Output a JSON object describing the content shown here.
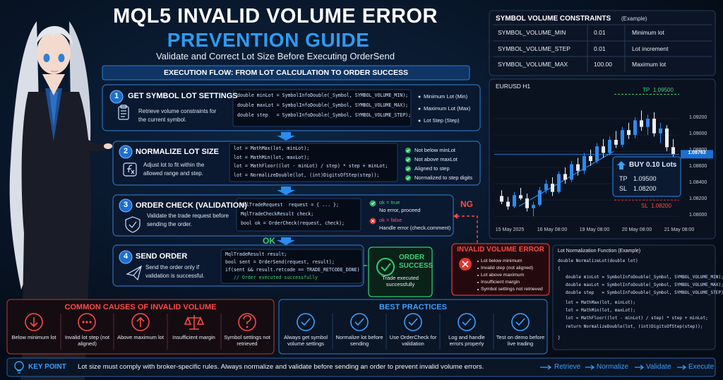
{
  "header": {
    "title": "MQL5 INVALID VOLUME ERROR",
    "subtitle": "PREVENTION GUIDE",
    "tagline": "Validate and Correct Lot Size Before Executing OrderSend"
  },
  "flow": {
    "title": "EXECUTION FLOW: FROM LOT CALCULATION TO ORDER SUCCESS",
    "ok": "OK",
    "ng": "NG"
  },
  "steps": [
    {
      "number": 1,
      "title": "GET SYMBOL LOT SETTINGS",
      "description": "Retrieve volume constraints for the current symbol.",
      "code": [
        "double minLot = SymbolInfoDouble(_Symbol, SYMBOL_VOLUME_MIN);",
        "double maxLot = SymbolInfoDouble(_Symbol, SYMBOL_VOLUME_MAX);",
        "double step   = SymbolInfoDouble(_Symbol, SYMBOL_VOLUME_STEP);"
      ],
      "notes": [
        "Minimum Lot (Min)",
        "Maximum Lot (Max)",
        "Lot Step (Step)"
      ]
    },
    {
      "number": 2,
      "title": "NORMALIZE LOT SIZE",
      "description": "Adjust lot to fit within the allowed range and step.",
      "code": [
        "lot = MathMax(lot, minLot);",
        "lot = MathMin(lot, maxLot);",
        "lot = MathFloor((lot - minLot) / step) * step + minLot;",
        "lot = NormalizeDouble(lot, (int)DigitsOfStep(step));"
      ],
      "notes": [
        "Not below minLot",
        "Not above maxLot",
        "Aligned to step",
        "Normalized to step digits"
      ]
    },
    {
      "number": 3,
      "title": "ORDER CHECK (VALIDATION)",
      "description": "Validate the trade request before sending the order.",
      "code": [
        "MqlTradeRequest  request = { ... };",
        "MqlTradeCheckResult check;",
        "bool ok = OrderCheck(request, check);"
      ],
      "results": [
        {
          "label": "ok = true",
          "detail": "No error, proceed"
        },
        {
          "label": "ok = false",
          "detail": "Handle error (check.comment)"
        }
      ]
    },
    {
      "number": 4,
      "title": "SEND ORDER",
      "description": "Send the order only if validation is successful.",
      "code": [
        "MqlTradeResult result;",
        "bool sent = OrderSend(request, result);",
        "if(sent && result.retcode == TRADE_RETCODE_DONE)",
        "   // Order executed successfully"
      ]
    }
  ],
  "success": {
    "title": "ORDER SUCCESS",
    "detail": "Trade executed successfully"
  },
  "error": {
    "title": "INVALID VOLUME ERROR",
    "items": [
      "Lot below minimum",
      "Invalid step (not aligned)",
      "Lot above maximum",
      "Insufficient margin",
      "Symbol settings not retrieved"
    ]
  },
  "constraints": {
    "title": "SYMBOL VOLUME CONSTRAINTS",
    "note": "(Example)",
    "rows": [
      [
        "SYMBOL_VOLUME_MIN",
        "0.01",
        "Minimum lot"
      ],
      [
        "SYMBOL_VOLUME_STEP",
        "0.01",
        "Lot increment"
      ],
      [
        "SYMBOL_VOLUME_MAX",
        "100.00",
        "Maximum lot"
      ]
    ]
  },
  "price_chart": {
    "title": "EURUSD H1",
    "ylim": [
      1.0795,
      1.096
    ],
    "yticks": [
      {
        "value": 1.092,
        "label": "1.09200"
      },
      {
        "value": 1.09,
        "label": "1.09000"
      },
      {
        "value": 1.088,
        "label": "1.08800"
      },
      {
        "value": 1.086,
        "label": "1.08600"
      },
      {
        "value": 1.084,
        "label": "1.08400"
      },
      {
        "value": 1.082,
        "label": "1.08200"
      },
      {
        "value": 1.08,
        "label": "1.08000"
      }
    ],
    "x_labels": [
      "15 May 2025",
      "16 May 08:00",
      "19 May 08:00",
      "20 May 08:00",
      "21 May 08:00"
    ],
    "candles": [
      [
        1.0825,
        1.0832,
        1.0815,
        1.0818
      ],
      [
        1.0818,
        1.0824,
        1.0808,
        1.0812
      ],
      [
        1.0812,
        1.083,
        1.081,
        1.0826
      ],
      [
        1.0826,
        1.0835,
        1.082,
        1.0822
      ],
      [
        1.0822,
        1.0828,
        1.0806,
        1.081
      ],
      [
        1.081,
        1.0818,
        1.08,
        1.0814
      ],
      [
        1.0814,
        1.0836,
        1.0812,
        1.0832
      ],
      [
        1.0832,
        1.0845,
        1.0828,
        1.084
      ],
      [
        1.084,
        1.0848,
        1.0825,
        1.083
      ],
      [
        1.083,
        1.0855,
        1.0828,
        1.0852
      ],
      [
        1.0852,
        1.086,
        1.084,
        1.0845
      ],
      [
        1.0845,
        1.0868,
        1.0842,
        1.0864
      ],
      [
        1.0864,
        1.0872,
        1.085,
        1.0856
      ],
      [
        1.0856,
        1.0878,
        1.0852,
        1.0874
      ],
      [
        1.0874,
        1.0882,
        1.0862,
        1.0868
      ],
      [
        1.0868,
        1.089,
        1.0865,
        1.0886
      ],
      [
        1.0886,
        1.0895,
        1.0872,
        1.0878
      ],
      [
        1.0878,
        1.0898,
        1.0875,
        1.0894
      ],
      [
        1.0894,
        1.0905,
        1.0884,
        1.0888
      ],
      [
        1.0888,
        1.091,
        1.0885,
        1.0906
      ],
      [
        1.0906,
        1.0915,
        1.0895,
        1.09
      ],
      [
        1.09,
        1.0922,
        1.0896,
        1.0918
      ],
      [
        1.0918,
        1.093,
        1.0905,
        1.091
      ],
      [
        1.091,
        1.0925,
        1.09,
        1.092
      ],
      [
        1.092,
        1.0928,
        1.0898,
        1.0902
      ],
      [
        1.0902,
        1.0915,
        1.089,
        1.0908
      ],
      [
        1.0908,
        1.0912,
        1.088,
        1.0885
      ],
      [
        1.0885,
        1.0895,
        1.087,
        1.0876
      ]
    ],
    "current_price": {
      "value": 1.08763,
      "label": "1.08763"
    },
    "take_profit": {
      "label": "TP",
      "value": 1.095,
      "value_label": "1.09500"
    },
    "stop_loss": {
      "label": "SL",
      "value": 1.082,
      "value_label": "1.08200"
    },
    "order": {
      "side": "BUY",
      "lots": "0.10 Lots"
    }
  },
  "function_code": {
    "title": "Lot Normalization Function (Example)",
    "lines": [
      "double NormalizeLot(double lot)",
      "{",
      "   double minLot = SymbolInfoDouble(_Symbol, SYMBOL_VOLUME_MIN);",
      "   double maxLot = SymbolInfoDouble(_Symbol, SYMBOL_VOLUME_MAX);",
      "   double step   = SymbolInfoDouble(_Symbol, SYMBOL_VOLUME_STEP);",
      "   lot = MathMax(lot, minLot);",
      "   lot = MathMin(lot, maxLot);",
      "   lot = MathFloor((lot - minLot) / step) * step + minLot;",
      "   return NormalizeDouble(lot, (int)DigitsOfStep(step));",
      "}"
    ]
  },
  "causes": {
    "title": "COMMON CAUSES OF INVALID VOLUME",
    "items": [
      "Below minimum lot",
      "Invalid lot step (not aligned)",
      "Above maximum lot",
      "Insufficient margin",
      "Symbol settings not retrieved"
    ]
  },
  "best_practices": {
    "title": "BEST PRACTICES",
    "items": [
      "Always get symbol volume settings",
      "Normalize lot before sending",
      "Use OrderCheck for validation",
      "Log and handle errors properly",
      "Test on demo before live trading"
    ]
  },
  "key_point": {
    "label": "KEY POINT",
    "text": "Lot size must comply with broker-specific rules. Always normalize and validate before sending an order to prevent invalid volume errors.",
    "flow": [
      "Retrieve",
      "Normalize",
      "Validate",
      "Execute"
    ]
  }
}
